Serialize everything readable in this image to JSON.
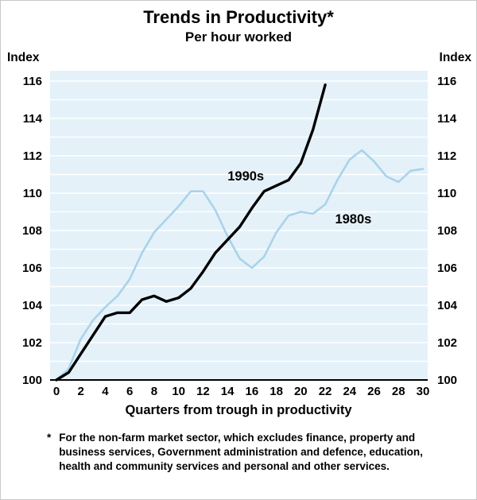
{
  "chart": {
    "title": "Trends in Productivity*",
    "subtitle": "Per hour worked",
    "y_axis_label_left": "Index",
    "y_axis_label_right": "Index",
    "x_axis_title": "Quarters from trough in productivity",
    "footnote_marker": "*",
    "footnote_text": "For the non-farm market sector, which excludes finance, property and business services, Government administration and defence, education, health and community services and personal and other services."
  },
  "chart_data": {
    "type": "line",
    "title": "Trends in Productivity*",
    "subtitle": "Per hour worked",
    "xlabel": "Quarters from trough in productivity",
    "ylabel": "Index",
    "xlim": [
      0,
      30
    ],
    "ylim": [
      100,
      116.6
    ],
    "x_ticks": [
      0,
      2,
      4,
      6,
      8,
      10,
      12,
      14,
      16,
      18,
      20,
      22,
      24,
      26,
      28,
      30
    ],
    "y_ticks": [
      100,
      102,
      104,
      106,
      108,
      110,
      112,
      114,
      116
    ],
    "grid": "horizontal-white-every-1-unit",
    "legend_position": "inline-annotations",
    "plot_bg_color": "#e4f1f9",
    "grid_color": "#ffffff",
    "axis_line_color": "#000000",
    "series": [
      {
        "name": "1980s",
        "color": "#a9d3ea",
        "stroke_width": 2.6,
        "x_start": 0,
        "x_step": 1,
        "values": [
          100.0,
          100.6,
          102.2,
          103.2,
          103.9,
          104.5,
          105.4,
          106.8,
          107.9,
          108.6,
          109.3,
          110.1,
          110.1,
          109.1,
          107.7,
          106.5,
          106.0,
          106.6,
          107.9,
          108.8,
          109.0,
          108.9,
          109.4,
          110.7,
          111.8,
          112.3,
          111.7,
          110.9,
          110.6,
          111.2,
          111.3
        ]
      },
      {
        "name": "1990s",
        "color": "#000000",
        "stroke_width": 3.4,
        "x_start": 0,
        "x_step": 1,
        "values": [
          100.0,
          100.4,
          101.4,
          102.4,
          103.4,
          103.6,
          103.6,
          104.3,
          104.5,
          104.2,
          104.4,
          104.9,
          105.8,
          106.8,
          107.5,
          108.2,
          109.2,
          110.1,
          110.4,
          110.7,
          111.6,
          113.4,
          115.8
        ]
      }
    ],
    "annotations": [
      {
        "text": "1990s",
        "x": 15.5,
        "y": 110.9
      },
      {
        "text": "1980s",
        "x": 24.3,
        "y": 108.6
      }
    ]
  }
}
